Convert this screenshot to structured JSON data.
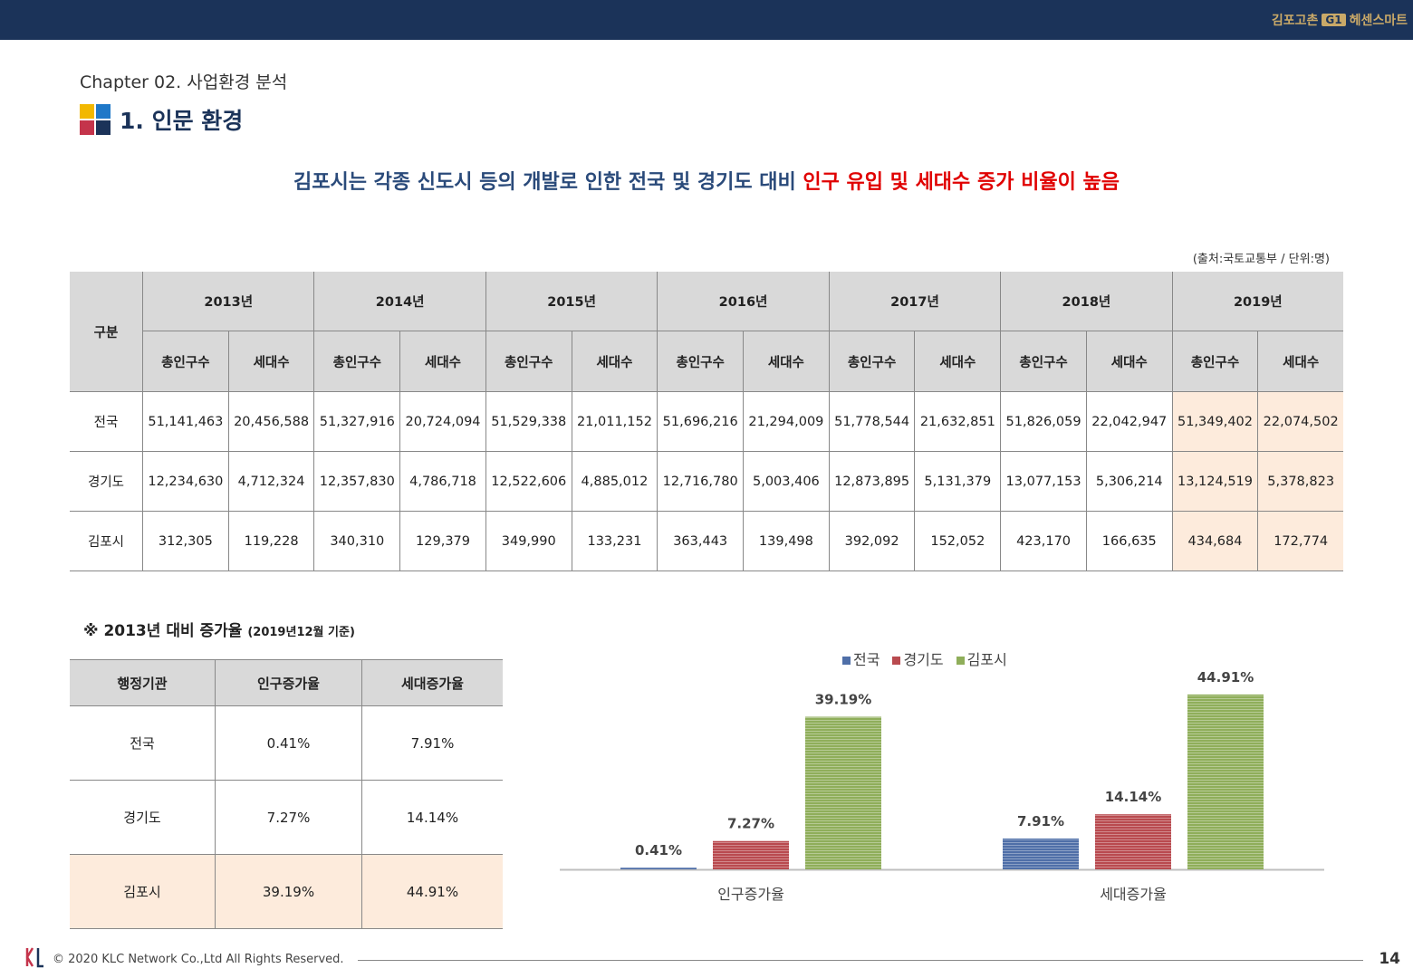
{
  "header": {
    "brand_left": "김포고촌",
    "brand_badge": "G1",
    "brand_right": "헤센스마트"
  },
  "chapter": "Chapter 02. 사업환경 분석",
  "title": "1. 인문 환경",
  "headline": {
    "blue": "김포시는 각종 신도시 등의 개발로 인한 전국 및 경기도 대비 ",
    "red": "인구 유입 및 세대수 증가 비율이 높음"
  },
  "source": "(출처:국토교통부 / 단위:명)",
  "main_table": {
    "corner": "구분",
    "years": [
      "2013년",
      "2014년",
      "2015년",
      "2016년",
      "2017년",
      "2018년",
      "2019년"
    ],
    "sub": [
      "총인구수",
      "세대수"
    ],
    "rows": [
      {
        "name": "전국",
        "values": [
          "51,141,463",
          "20,456,588",
          "51,327,916",
          "20,724,094",
          "51,529,338",
          "21,011,152",
          "51,696,216",
          "21,294,009",
          "51,778,544",
          "21,632,851",
          "51,826,059",
          "22,042,947",
          "51,349,402",
          "22,074,502"
        ]
      },
      {
        "name": "경기도",
        "values": [
          "12,234,630",
          "4,712,324",
          "12,357,830",
          "4,786,718",
          "12,522,606",
          "4,885,012",
          "12,716,780",
          "5,003,406",
          "12,873,895",
          "5,131,379",
          "13,077,153",
          "5,306,214",
          "13,124,519",
          "5,378,823"
        ]
      },
      {
        "name": "김포시",
        "values": [
          "312,305",
          "119,228",
          "340,310",
          "129,379",
          "349,990",
          "133,231",
          "363,443",
          "139,498",
          "392,092",
          "152,052",
          "423,170",
          "166,635",
          "434,684",
          "172,774"
        ]
      }
    ]
  },
  "rate_section": {
    "title": "※ 2013년 대비 증가율",
    "note": "(2019년12월 기준)"
  },
  "rate_table": {
    "headers": [
      "행정기관",
      "인구증가율",
      "세대증가율"
    ],
    "rows": [
      [
        "전국",
        "0.41%",
        "7.91%"
      ],
      [
        "경기도",
        "7.27%",
        "14.14%"
      ],
      [
        "김포시",
        "39.19%",
        "44.91%"
      ]
    ]
  },
  "chart_data": {
    "type": "bar",
    "categories": [
      "인구증가율",
      "세대증가율"
    ],
    "series": [
      {
        "name": "전국",
        "values": [
          0.41,
          7.91
        ],
        "labels": [
          "0.41%",
          "7.91%"
        ],
        "color": "#4f6fa8"
      },
      {
        "name": "경기도",
        "values": [
          7.27,
          14.14
        ],
        "labels": [
          "7.27%",
          "14.14%"
        ],
        "color": "#b94a4f"
      },
      {
        "name": "김포시",
        "values": [
          39.19,
          44.91
        ],
        "labels": [
          "39.19%",
          "44.91%"
        ],
        "color": "#8fae5a"
      }
    ],
    "ylim": [
      0,
      50
    ],
    "legend": "top"
  },
  "footer": {
    "copyright": "© 2020 KLC Network Co.,Ltd  All Rights Reserved.",
    "page": "14"
  }
}
